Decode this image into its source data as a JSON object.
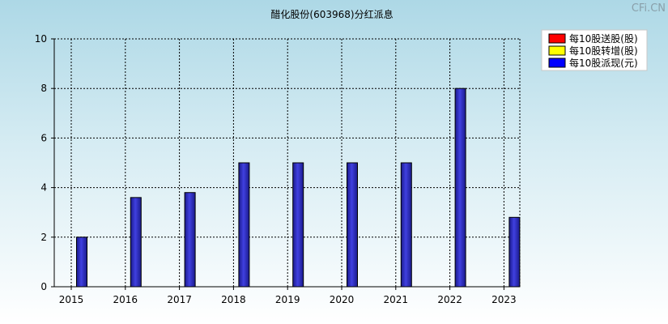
{
  "watermark": "CFi.CN",
  "colors": {
    "bar_fill": "#4040e0",
    "bar_dark": "#1a1a8c",
    "legend_sg": "#ff0000",
    "legend_zz": "#ffff00",
    "legend_px": "#0000ff"
  },
  "chart_data": {
    "type": "bar",
    "title": "醋化股份(603968)分红派息",
    "categories": [
      "2015",
      "2016",
      "2017",
      "2018",
      "2019",
      "2020",
      "2021",
      "2022",
      "2023"
    ],
    "series": [
      {
        "name": "每10股送股(股)",
        "values": [
          0,
          0,
          0,
          0,
          0,
          0,
          0,
          0,
          0
        ]
      },
      {
        "name": "每10股转增(股)",
        "values": [
          0,
          0,
          0,
          0,
          0,
          0,
          0,
          0,
          0
        ]
      },
      {
        "name": "每10股派现(元)",
        "values": [
          2,
          3.6,
          3.8,
          5,
          5,
          5,
          5,
          8,
          2.8
        ]
      }
    ],
    "ylim": [
      0,
      10
    ],
    "yticks": [
      "0",
      "2",
      "4",
      "6",
      "8",
      "10"
    ],
    "grid": true,
    "legend_position": "top-right"
  }
}
